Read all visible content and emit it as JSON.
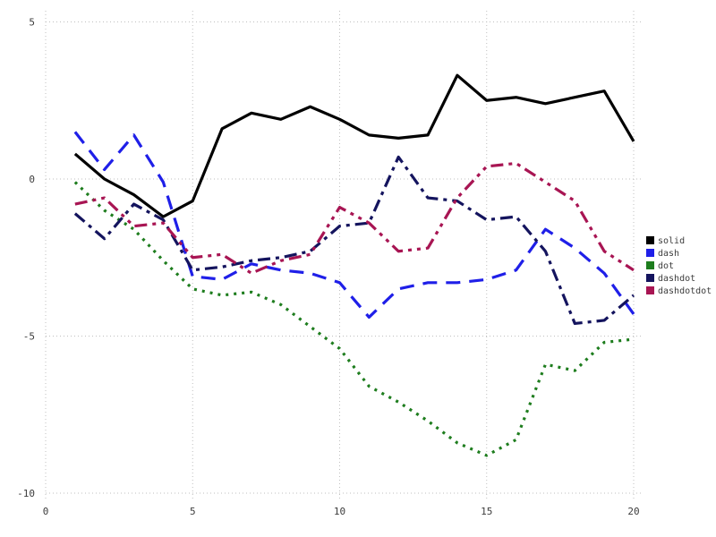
{
  "chart_data": {
    "type": "line",
    "title": "",
    "xlabel": "",
    "ylabel": "",
    "x": [
      1,
      2,
      3,
      4,
      5,
      6,
      7,
      8,
      9,
      10,
      11,
      12,
      13,
      14,
      15,
      16,
      17,
      18,
      19,
      20
    ],
    "series": [
      {
        "name": "solid",
        "color": "#000000",
        "style": "solid",
        "values": [
          0.8,
          0.0,
          -0.5,
          -1.2,
          -0.7,
          1.6,
          2.1,
          1.9,
          2.3,
          1.9,
          1.4,
          1.3,
          1.4,
          3.3,
          2.5,
          2.6,
          2.4,
          2.6,
          2.8,
          1.2
        ]
      },
      {
        "name": "dash",
        "color": "#1f1fe8",
        "style": "dash",
        "values": [
          1.5,
          0.3,
          1.4,
          -0.1,
          -3.1,
          -3.2,
          -2.7,
          -2.9,
          -3.0,
          -3.3,
          -4.4,
          -3.5,
          -3.3,
          -3.3,
          -3.2,
          -2.9,
          -1.6,
          -2.2,
          -3.0,
          -4.3
        ]
      },
      {
        "name": "dot",
        "color": "#1e7d1e",
        "style": "dot",
        "values": [
          -0.1,
          -1.0,
          -1.6,
          -2.6,
          -3.5,
          -3.7,
          -3.6,
          -4.0,
          -4.7,
          -5.4,
          -6.6,
          -7.1,
          -7.7,
          -8.4,
          -8.8,
          -8.3,
          -5.9,
          -6.1,
          -5.2,
          -5.1
        ]
      },
      {
        "name": "dashdot",
        "color": "#14145e",
        "style": "dashdot",
        "values": [
          -1.1,
          -1.9,
          -0.8,
          -1.3,
          -2.9,
          -2.8,
          -2.6,
          -2.5,
          -2.3,
          -1.5,
          -1.4,
          0.7,
          -0.6,
          -0.7,
          -1.3,
          -1.2,
          -2.3,
          -4.6,
          -4.5,
          -3.7
        ]
      },
      {
        "name": "dashdotdot",
        "color": "#a81553",
        "style": "dashdotdot",
        "values": [
          -0.8,
          -0.6,
          -1.5,
          -1.4,
          -2.5,
          -2.4,
          -3.0,
          -2.6,
          -2.4,
          -0.9,
          -1.4,
          -2.3,
          -2.2,
          -0.6,
          0.4,
          0.5,
          -0.1,
          -0.7,
          -2.3,
          -2.9
        ]
      }
    ],
    "xticks": [
      0,
      5,
      10,
      15,
      20
    ],
    "yticks": [
      -10,
      -5,
      0,
      5
    ],
    "xlim": [
      0,
      20
    ],
    "ylim": [
      -10,
      5
    ],
    "grid": true,
    "grid_color": "#bfbfbf",
    "tick_label_color": "#3c3c3c",
    "legend_position": "right",
    "legend": [
      "solid",
      "dash",
      "dot",
      "dashdot",
      "dashdotdot"
    ]
  }
}
